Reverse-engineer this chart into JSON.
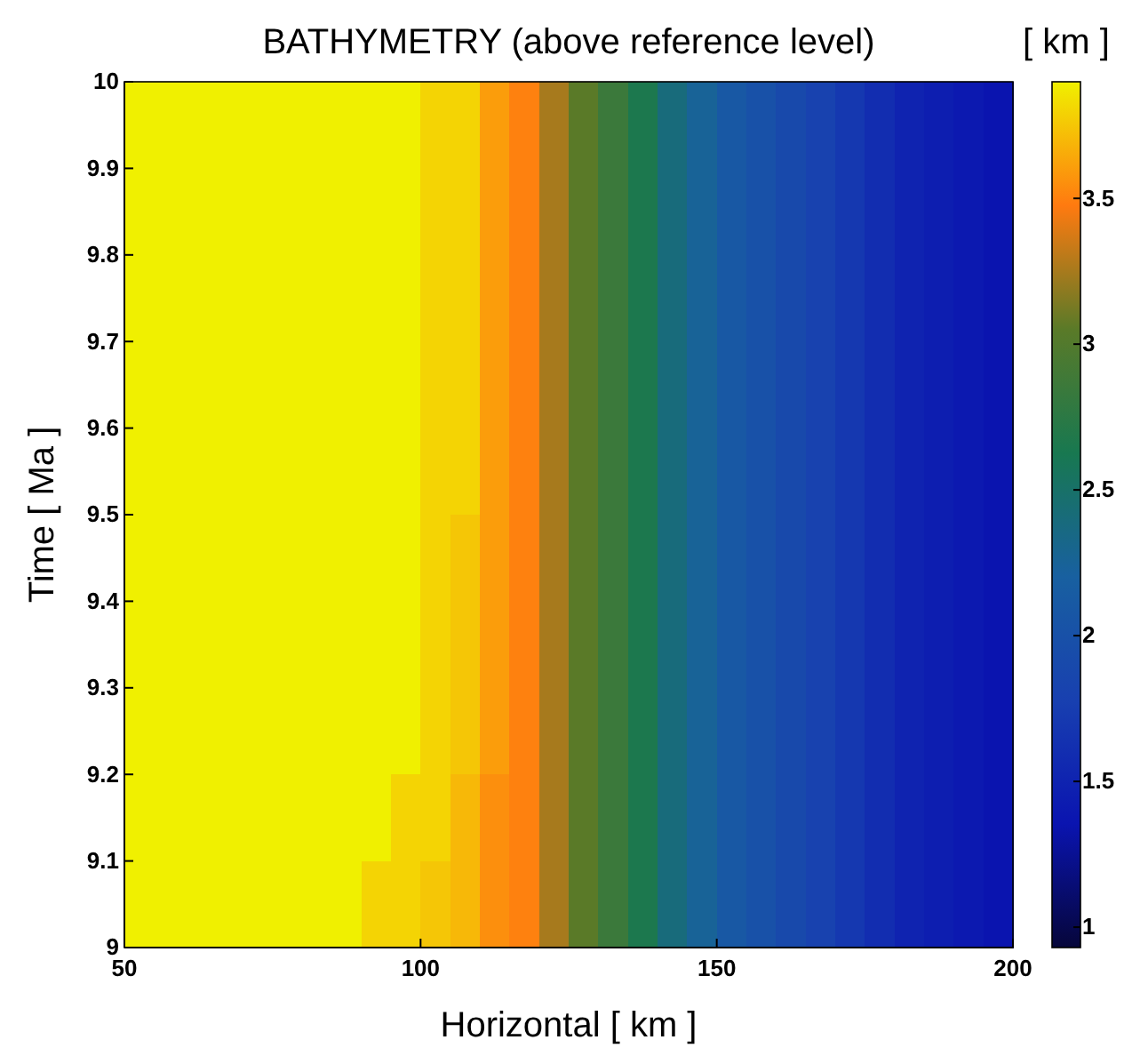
{
  "chart_data": {
    "type": "heatmap",
    "title": "BATHYMETRY (above reference level)",
    "xlabel": "Horizontal [ km ]",
    "ylabel": "Time [ Ma ]",
    "clabel": "[ km ]",
    "xlim": [
      50,
      200
    ],
    "xticks": [
      50,
      100,
      150,
      200
    ],
    "ylim": [
      9,
      10
    ],
    "yticks": [
      9,
      9.1,
      9.2,
      9.3,
      9.4,
      9.5,
      9.6,
      9.7,
      9.8,
      9.9,
      10
    ],
    "x": [
      52.5,
      57.5,
      62.5,
      67.5,
      72.5,
      77.5,
      82.5,
      87.5,
      92.5,
      97.5,
      102.5,
      107.5,
      112.5,
      117.5,
      122.5,
      127.5,
      132.5,
      137.5,
      142.5,
      147.5,
      152.5,
      157.5,
      162.5,
      167.5,
      172.5,
      177.5,
      182.5,
      187.5,
      192.5,
      197.5
    ],
    "cells": [
      [
        3.9,
        3.9,
        3.9,
        3.9,
        3.9,
        3.9,
        3.9,
        3.9,
        3.9,
        3.9,
        3.8,
        3.8,
        3.6,
        3.5,
        3.25,
        3.05,
        2.85,
        2.65,
        2.4,
        2.25,
        2.1,
        2.0,
        1.9,
        1.8,
        1.7,
        1.6,
        1.5,
        1.45,
        1.4,
        1.35
      ],
      [
        3.9,
        3.9,
        3.9,
        3.9,
        3.9,
        3.9,
        3.9,
        3.9,
        3.9,
        3.9,
        3.8,
        3.8,
        3.6,
        3.5,
        3.25,
        3.05,
        2.85,
        2.65,
        2.4,
        2.25,
        2.1,
        2.0,
        1.9,
        1.8,
        1.7,
        1.6,
        1.5,
        1.45,
        1.4,
        1.35
      ],
      [
        3.9,
        3.9,
        3.9,
        3.9,
        3.9,
        3.9,
        3.9,
        3.9,
        3.9,
        3.9,
        3.8,
        3.8,
        3.6,
        3.5,
        3.25,
        3.05,
        2.85,
        2.65,
        2.4,
        2.25,
        2.1,
        2.0,
        1.9,
        1.8,
        1.7,
        1.6,
        1.5,
        1.45,
        1.4,
        1.35
      ],
      [
        3.9,
        3.9,
        3.9,
        3.9,
        3.9,
        3.9,
        3.9,
        3.9,
        3.9,
        3.9,
        3.8,
        3.8,
        3.6,
        3.5,
        3.25,
        3.05,
        2.85,
        2.65,
        2.4,
        2.25,
        2.1,
        2.0,
        1.9,
        1.8,
        1.7,
        1.6,
        1.5,
        1.45,
        1.4,
        1.35
      ],
      [
        3.9,
        3.9,
        3.9,
        3.9,
        3.9,
        3.9,
        3.9,
        3.9,
        3.9,
        3.9,
        3.8,
        3.8,
        3.6,
        3.5,
        3.25,
        3.05,
        2.85,
        2.65,
        2.4,
        2.25,
        2.1,
        2.0,
        1.9,
        1.8,
        1.7,
        1.6,
        1.5,
        1.45,
        1.4,
        1.35
      ],
      [
        3.9,
        3.9,
        3.9,
        3.9,
        3.9,
        3.9,
        3.9,
        3.9,
        3.9,
        3.9,
        3.8,
        3.75,
        3.6,
        3.5,
        3.25,
        3.05,
        2.85,
        2.65,
        2.4,
        2.25,
        2.1,
        2.0,
        1.9,
        1.8,
        1.7,
        1.6,
        1.5,
        1.45,
        1.4,
        1.35
      ],
      [
        3.9,
        3.9,
        3.9,
        3.9,
        3.9,
        3.9,
        3.9,
        3.9,
        3.9,
        3.9,
        3.8,
        3.75,
        3.6,
        3.5,
        3.25,
        3.05,
        2.85,
        2.65,
        2.4,
        2.25,
        2.1,
        2.0,
        1.9,
        1.8,
        1.7,
        1.6,
        1.5,
        1.45,
        1.4,
        1.35
      ],
      [
        3.9,
        3.9,
        3.9,
        3.9,
        3.9,
        3.9,
        3.9,
        3.9,
        3.9,
        3.9,
        3.8,
        3.75,
        3.6,
        3.5,
        3.25,
        3.05,
        2.85,
        2.65,
        2.4,
        2.25,
        2.1,
        2.0,
        1.9,
        1.8,
        1.7,
        1.6,
        1.5,
        1.45,
        1.4,
        1.35
      ],
      [
        3.9,
        3.9,
        3.9,
        3.9,
        3.9,
        3.9,
        3.9,
        3.9,
        3.9,
        3.8,
        3.8,
        3.7,
        3.55,
        3.5,
        3.25,
        3.05,
        2.85,
        2.65,
        2.4,
        2.25,
        2.1,
        2.0,
        1.9,
        1.8,
        1.7,
        1.6,
        1.5,
        1.45,
        1.4,
        1.35
      ],
      [
        3.9,
        3.9,
        3.9,
        3.9,
        3.9,
        3.9,
        3.9,
        3.9,
        3.8,
        3.8,
        3.75,
        3.7,
        3.55,
        3.5,
        3.25,
        3.05,
        2.85,
        2.65,
        2.4,
        2.25,
        2.1,
        2.0,
        1.9,
        1.8,
        1.7,
        1.6,
        1.5,
        1.45,
        1.4,
        1.35
      ]
    ],
    "colors": [
      "#06063a",
      "#0a14b0",
      "#1840b0",
      "#1860a0",
      "#187850",
      "#5a7a28",
      "#ff7a10",
      "#f0f000"
    ],
    "clim": [
      0.93,
      3.9
    ],
    "cticks": [
      1,
      1.5,
      2,
      2.5,
      3,
      3.5
    ]
  }
}
